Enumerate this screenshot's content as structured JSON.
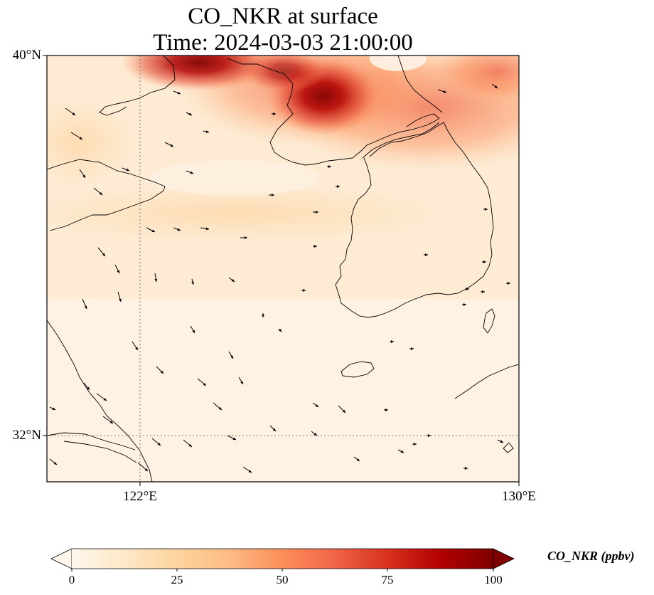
{
  "title": {
    "line1": "CO_NKR at surface",
    "line2": "Time: 2024-03-03 21:00:00"
  },
  "map": {
    "lat_labels": [
      "40°N",
      "32°N"
    ],
    "lon_labels": [
      "122°E",
      "130°E"
    ],
    "gridlines": "dotted",
    "overlay": "wind vectors (arrows)",
    "colormap": "OrRd"
  },
  "colorbar": {
    "label": "CO_NKR (ppbv)",
    "ticks": [
      "0",
      "25",
      "50",
      "75",
      "100"
    ],
    "extend": "both",
    "colors": [
      "#fff7ec",
      "#fee8c8",
      "#fdd49e",
      "#fdbb84",
      "#fc8d59",
      "#ef6548",
      "#d7301f",
      "#b30000",
      "#7f0000"
    ]
  }
}
